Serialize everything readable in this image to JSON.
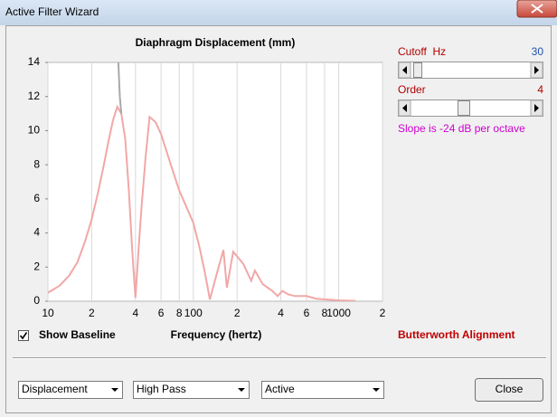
{
  "window": {
    "title": "Active Filter Wizard"
  },
  "chart_data": {
    "type": "line",
    "title": "Diaphragm Displacement (mm)",
    "x_label": "Frequency (hertz)",
    "log_x": true,
    "grid": "x",
    "xlim": [
      10,
      2000
    ],
    "ylim": [
      0,
      14
    ],
    "xticks": [
      10,
      {
        "value": 20,
        "label": "2"
      },
      {
        "value": 40,
        "label": "4"
      },
      {
        "value": 60,
        "label": "6"
      },
      {
        "value": 80,
        "label": "8"
      },
      100,
      {
        "value": 200,
        "label": "2"
      },
      {
        "value": 400,
        "label": "4"
      },
      {
        "value": 600,
        "label": "6"
      },
      {
        "value": 800,
        "label": "8"
      },
      1000,
      {
        "value": 2000,
        "label": "2"
      }
    ],
    "yticks": [
      0,
      2,
      4,
      6,
      8,
      10,
      12,
      14
    ],
    "series": [
      {
        "color": "#f2a7a7",
        "x": [
          10,
          12,
          14,
          16,
          18,
          20,
          22,
          24,
          26,
          28,
          30,
          32,
          34,
          36,
          38,
          40,
          42,
          44,
          47,
          50,
          55,
          60,
          70,
          80,
          100,
          110,
          120,
          130,
          145,
          161,
          170,
          188,
          220,
          250,
          265,
          300,
          350,
          380,
          410,
          450,
          500,
          600,
          700,
          1000,
          1300
        ],
        "values": [
          0.5,
          0.9,
          1.5,
          2.3,
          3.5,
          4.8,
          6.3,
          7.8,
          9.3,
          10.6,
          11.4,
          11.0,
          9.5,
          6.5,
          3.0,
          0.2,
          3.0,
          5.5,
          8.5,
          10.8,
          10.5,
          9.8,
          8.0,
          6.5,
          4.6,
          3.2,
          1.7,
          0.1,
          1.6,
          3.0,
          0.8,
          2.9,
          2.2,
          1.2,
          1.8,
          1.0,
          0.6,
          0.3,
          0.6,
          0.4,
          0.3,
          0.3,
          0.15,
          0.05,
          0.02
        ]
      },
      {
        "color": "#a9a9a9",
        "x": [
          30.5,
          31.2,
          32
        ],
        "values": [
          14,
          12,
          11
        ]
      }
    ]
  },
  "controls": {
    "cutoff_label": "Cutoff  Hz",
    "cutoff_value": "30",
    "order_label": "Order",
    "order_value": "4",
    "slope": "Slope is -24 dB per octave",
    "baseline_checkbox": "Show Baseline",
    "alignment": "Butterworth Alignment",
    "dropdowns": [
      "Displacement",
      "High Pass",
      "Active"
    ],
    "close_button": "Close"
  }
}
